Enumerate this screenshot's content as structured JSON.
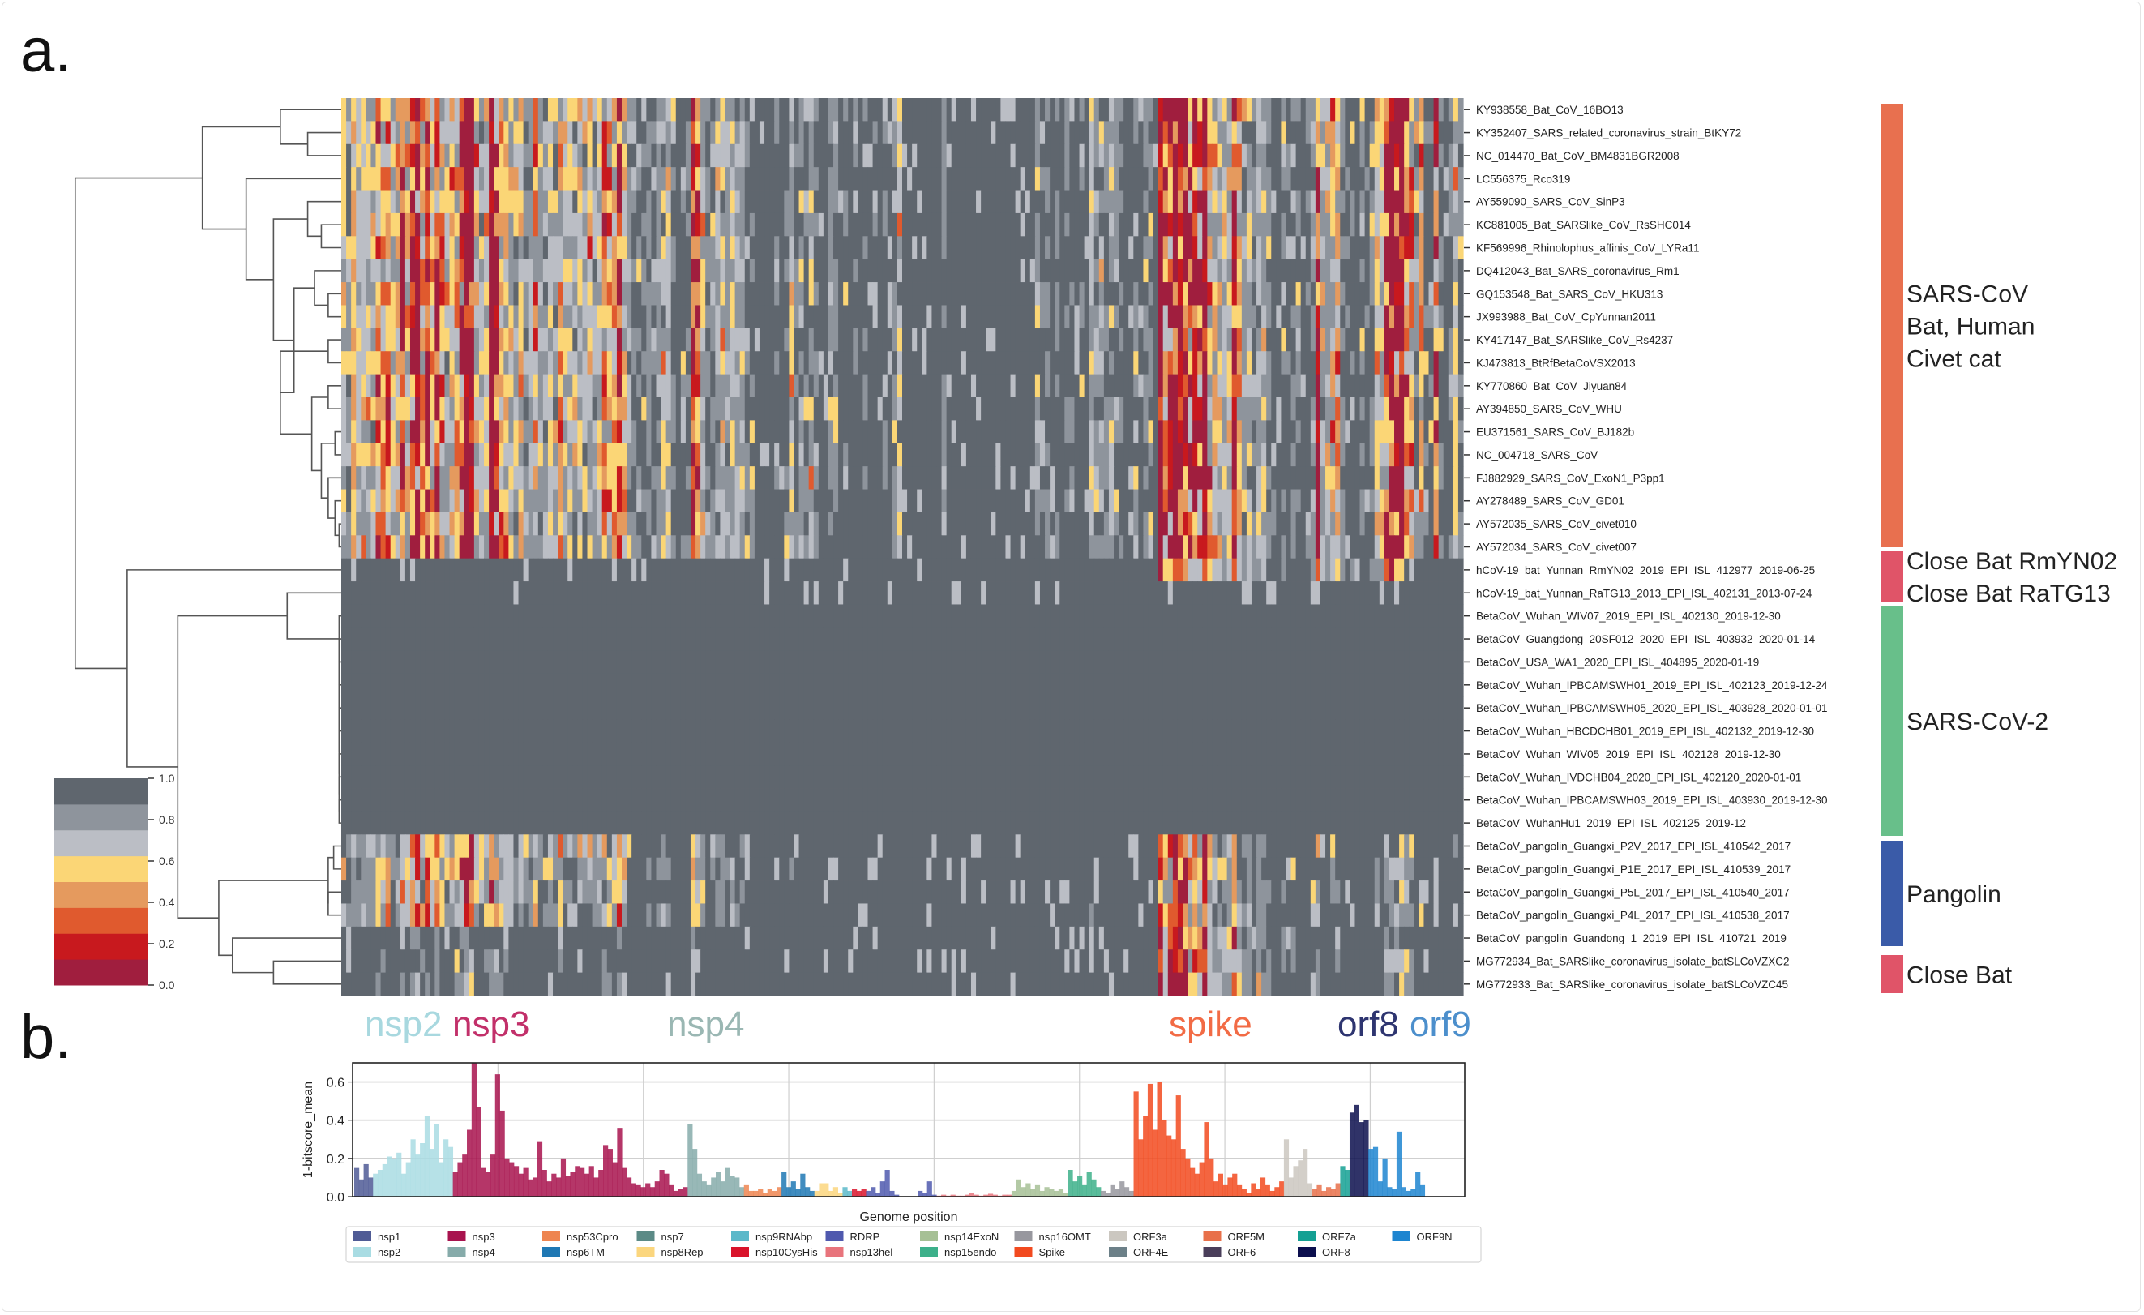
{
  "panel_labels": {
    "a": "a.",
    "b": "b."
  },
  "chart_data": [
    {
      "type": "heatmap",
      "rows": [
        "KY938558_Bat_CoV_16BO13",
        "KY352407_SARS_related_coronavirus_strain_BtKY72",
        "NC_014470_Bat_CoV_BM4831BGR2008",
        "LC556375_Rco319",
        "AY559090_SARS_CoV_SinP3",
        "KC881005_Bat_SARSlike_CoV_RsSHC014",
        "KF569996_Rhinolophus_affinis_CoV_LYRa11",
        "DQ412043_Bat_SARS_coronavirus_Rm1",
        "GQ153548_Bat_SARS_CoV_HKU313",
        "JX993988_Bat_CoV_CpYunnan2011",
        "KY417147_Bat_SARSlike_CoV_Rs4237",
        "KJ473813_BtRfBetaCoVSX2013",
        "KY770860_Bat_CoV_Jiyuan84",
        "AY394850_SARS_CoV_WHU",
        "EU371561_SARS_CoV_BJ182b",
        "NC_004718_SARS_CoV",
        "FJ882929_SARS_CoV_ExoN1_P3pp1",
        "AY278489_SARS_CoV_GD01",
        "AY572035_SARS_CoV_civet010",
        "AY572034_SARS_CoV_civet007",
        "hCoV-19_bat_Yunnan_RmYN02_2019_EPI_ISL_412977_2019-06-25",
        "hCoV-19_bat_Yunnan_RaTG13_2013_EPI_ISL_402131_2013-07-24",
        "BetaCoV_Wuhan_WIV07_2019_EPI_ISL_402130_2019-12-30",
        "BetaCoV_Guangdong_20SF012_2020_EPI_ISL_403932_2020-01-14",
        "BetaCoV_USA_WA1_2020_EPI_ISL_404895_2020-01-19",
        "BetaCoV_Wuhan_IPBCAMSWH01_2019_EPI_ISL_402123_2019-12-24",
        "BetaCoV_Wuhan_IPBCAMSWH05_2020_EPI_ISL_403928_2020-01-01",
        "BetaCoV_Wuhan_HBCDCHB01_2019_EPI_ISL_402132_2019-12-30",
        "BetaCoV_Wuhan_WIV05_2019_EPI_ISL_402128_2019-12-30",
        "BetaCoV_Wuhan_IVDCHB04_2020_EPI_ISL_402120_2020-01-01",
        "BetaCoV_Wuhan_IPBCAMSWH03_2019_EPI_ISL_403930_2019-12-30",
        "BetaCoV_WuhanHu1_2019_EPI_ISL_402125_2019-12",
        "BetaCoV_pangolin_Guangxi_P2V_2017_EPI_ISL_410542_2017",
        "BetaCoV_pangolin_Guangxi_P1E_2017_EPI_ISL_410539_2017",
        "BetaCoV_pangolin_Guangxi_P5L_2017_EPI_ISL_410540_2017",
        "BetaCoV_pangolin_Guangxi_P4L_2017_EPI_ISL_410538_2017",
        "BetaCoV_pangolin_Guandong_1_2019_EPI_ISL_410721_2019",
        "MG772934_Bat_SARSlike_coronavirus_isolate_batSLCoVZXC2",
        "MG772933_Bat_SARSlike_coronavirus_isolate_batSLCoVZC45"
      ],
      "groups": [
        {
          "label_lines": [
            "SARS-CoV",
            "Bat, Human",
            "Civet cat"
          ],
          "color": "#E8704F",
          "rows": [
            0,
            19
          ]
        },
        {
          "label_lines": [
            "Close Bat RmYN02",
            "Close Bat RaTG13"
          ],
          "color": "#E05468",
          "rows": [
            20,
            21
          ]
        },
        {
          "label_lines": [
            "SARS-CoV-2"
          ],
          "color": "#68BF8A",
          "rows": [
            22,
            31
          ]
        },
        {
          "label_lines": [
            "Pangolin"
          ],
          "color": "#3A5BA8",
          "rows": [
            32,
            36
          ]
        },
        {
          "label_lines": [
            "Close Bat"
          ],
          "color": "#E05468",
          "rows": [
            37,
            38
          ]
        }
      ],
      "colorbar": {
        "ticks": [
          "1.0",
          "0.8",
          "0.6",
          "0.4",
          "0.2",
          "0.0"
        ],
        "range": [
          0,
          1
        ],
        "colors_low_to_high": [
          "#A01E3E",
          "#C8191E",
          "#E05A2E",
          "#E59A5E",
          "#FBD676",
          "#BBBEC5",
          "#8E949C",
          "#5F666E"
        ]
      },
      "region_labels": [
        {
          "text": "nsp2",
          "color": "#A8D8DF"
        },
        {
          "text": "nsp3",
          "color": "#C2306A"
        },
        {
          "text": "nsp4",
          "color": "#9AB7B3"
        },
        {
          "text": "spike",
          "color": "#F26B45"
        },
        {
          "text": "orf8",
          "color": "#2E3570"
        },
        {
          "text": "orf9",
          "color": "#4C8FCC"
        }
      ]
    },
    {
      "type": "bar",
      "ylabel": "1-bitscore_mean",
      "xlabel": "Genome position",
      "ylim": [
        0,
        0.7
      ],
      "yticks": [
        "0.0",
        "0.2",
        "0.4",
        "0.6"
      ],
      "grid": true,
      "legend_position": "bottom",
      "segments": [
        {
          "name": "nsp1",
          "values": [
            0.15,
            0.09,
            0.17,
            0.1
          ]
        },
        {
          "name": "nsp2",
          "values": [
            0.12,
            0.14,
            0.17,
            0.21,
            0.2,
            0.23,
            0.12,
            0.18,
            0.3,
            0.22,
            0.28,
            0.42,
            0.25,
            0.38,
            0.18,
            0.3,
            0.26
          ]
        },
        {
          "name": "nsp3",
          "values": [
            0.13,
            0.18,
            0.22,
            0.35,
            0.7,
            0.47,
            0.15,
            0.13,
            0.22,
            0.64,
            0.45,
            0.2,
            0.18,
            0.16,
            0.12,
            0.15,
            0.09,
            0.1,
            0.29,
            0.14,
            0.08,
            0.12,
            0.1,
            0.2,
            0.11,
            0.13,
            0.16,
            0.15,
            0.12,
            0.16,
            0.1,
            0.14,
            0.27,
            0.25,
            0.18,
            0.36,
            0.15,
            0.1,
            0.07,
            0.06,
            0.05,
            0.07,
            0.05,
            0.08,
            0.14,
            0.12,
            0.06,
            0.03,
            0.04,
            0.05
          ]
        },
        {
          "name": "nsp4",
          "values": [
            0.38,
            0.25,
            0.12,
            0.08,
            0.06,
            0.1,
            0.13,
            0.08,
            0.15,
            0.11,
            0.1,
            0.05
          ]
        },
        {
          "name": "nsp53Cpro",
          "values": [
            0.06,
            0.03,
            0.03,
            0.04,
            0.02,
            0.04,
            0.03,
            0.05
          ]
        },
        {
          "name": "nsp6TM",
          "values": [
            0.13,
            0.05,
            0.08,
            0.04,
            0.12,
            0.05,
            0.03
          ]
        },
        {
          "name": "nsp8Rep",
          "values": [
            0.03,
            0.07,
            0.07,
            0.03,
            0.05,
            0.02
          ]
        },
        {
          "name": "nsp9RNAbp",
          "values": [
            0.05,
            0.03
          ]
        },
        {
          "name": "nsp10CysHis",
          "values": [
            0.04,
            0.03,
            0.04
          ]
        },
        {
          "name": "RDRP",
          "values": [
            0.03,
            0.05,
            0.02,
            0.08,
            0.14,
            0.03,
            0.01,
            0.0,
            0.0,
            0.0,
            0.0,
            0.03,
            0.02,
            0.08,
            0.01
          ]
        },
        {
          "name": "nsp13hel",
          "values": [
            0.005,
            0.01,
            0.005,
            0.01,
            0.005,
            0.005,
            0.01,
            0.02,
            0.01,
            0.005,
            0.01,
            0.015,
            0.01,
            0.005,
            0.01,
            0.01
          ]
        },
        {
          "name": "nsp14ExoN",
          "values": [
            0.03,
            0.09,
            0.05,
            0.07,
            0.04,
            0.06,
            0.03,
            0.05,
            0.04,
            0.03,
            0.04,
            0.02
          ]
        },
        {
          "name": "nsp15endo",
          "values": [
            0.14,
            0.08,
            0.11,
            0.06,
            0.13,
            0.09,
            0.05
          ]
        },
        {
          "name": "nsp16OMT",
          "values": [
            0.03,
            0.02,
            0.06,
            0.04,
            0.08,
            0.05,
            0.03
          ]
        },
        {
          "name": "Spike",
          "values": [
            0.55,
            0.3,
            0.42,
            0.59,
            0.35,
            0.6,
            0.4,
            0.32,
            0.3,
            0.53,
            0.25,
            0.2,
            0.15,
            0.12,
            0.18,
            0.39,
            0.2,
            0.08,
            0.12,
            0.06,
            0.1,
            0.12,
            0.06,
            0.04,
            0.02,
            0.07,
            0.04,
            0.1,
            0.06,
            0.03,
            0.05,
            0.08
          ]
        },
        {
          "name": "ORF3a",
          "values": [
            0.3,
            0.1,
            0.16,
            0.19,
            0.25,
            0.07
          ]
        },
        {
          "name": "ORF5M",
          "values": [
            0.04,
            0.06,
            0.03,
            0.05,
            0.04,
            0.07
          ]
        },
        {
          "name": "ORF7a",
          "values": [
            0.16,
            0.14
          ]
        },
        {
          "name": "ORF8",
          "values": [
            0.44,
            0.48,
            0.39,
            0.4
          ]
        },
        {
          "name": "ORF9N",
          "values": [
            0.25,
            0.26,
            0.08,
            0.2,
            0.05,
            0.04,
            0.34,
            0.05,
            0.03,
            0.04,
            0.13,
            0.06
          ]
        }
      ],
      "legend": [
        {
          "name": "nsp1",
          "color": "#4F5B95"
        },
        {
          "name": "nsp2",
          "color": "#A9DCE3"
        },
        {
          "name": "nsp3",
          "color": "#A8134E"
        },
        {
          "name": "nsp4",
          "color": "#86ABAA"
        },
        {
          "name": "nsp53Cpro",
          "color": "#EE8550"
        },
        {
          "name": "nsp6TM",
          "color": "#1F78B4"
        },
        {
          "name": "nsp7",
          "color": "#5B8A86"
        },
        {
          "name": "nsp8Rep",
          "color": "#FBD67E"
        },
        {
          "name": "nsp9RNAbp",
          "color": "#5BB8C9"
        },
        {
          "name": "nsp10CysHis",
          "color": "#D9142B"
        },
        {
          "name": "RDRP",
          "color": "#4F59AE"
        },
        {
          "name": "nsp13hel",
          "color": "#E8747C"
        },
        {
          "name": "nsp14ExoN",
          "color": "#A6C095"
        },
        {
          "name": "nsp15endo",
          "color": "#3DB08A"
        },
        {
          "name": "nsp16OMT",
          "color": "#97979E"
        },
        {
          "name": "Spike",
          "color": "#F24A1F"
        },
        {
          "name": "ORF3a",
          "color": "#CBC7C0"
        },
        {
          "name": "ORF4E",
          "color": "#6C8088"
        },
        {
          "name": "ORF5M",
          "color": "#E8704A"
        },
        {
          "name": "ORF6",
          "color": "#4A3E5A"
        },
        {
          "name": "ORF7a",
          "color": "#14A093"
        },
        {
          "name": "ORF8",
          "color": "#0C0F4E"
        },
        {
          "name": "ORF9N",
          "color": "#1D85D0"
        }
      ]
    }
  ]
}
